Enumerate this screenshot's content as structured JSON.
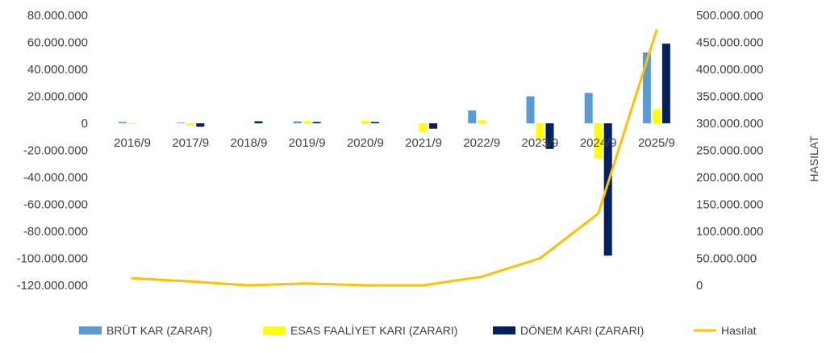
{
  "chart_data": {
    "type": "bar",
    "categories": [
      "2016/9",
      "2017/9",
      "2018/9",
      "2019/9",
      "2020/9",
      "2021/9",
      "2022/9",
      "2023/9",
      "2024/9",
      "2025/9"
    ],
    "series": [
      {
        "name": "BRÜT KAR (ZARAR)",
        "type": "bar",
        "axis": "left",
        "color": "#5B9BD5",
        "values": [
          1000000,
          500000,
          0,
          1500000,
          0,
          0,
          9500000,
          20000000,
          22500000,
          52500000
        ]
      },
      {
        "name": "ESAS FAALİYET KARI (ZARARI)",
        "type": "bar",
        "axis": "left",
        "color": "#FFFF00",
        "values": [
          -700000,
          -1500000,
          0,
          1500000,
          2000000,
          -6000000,
          2500000,
          -12000000,
          -26000000,
          10500000
        ]
      },
      {
        "name": "DÖNEM KARI (ZARARI)",
        "type": "bar",
        "axis": "left",
        "color": "#002060",
        "values": [
          0,
          -2500000,
          1500000,
          1000000,
          1000000,
          -4000000,
          0,
          -19000000,
          -98000000,
          59000000
        ]
      },
      {
        "name": "Hasılat",
        "type": "line",
        "axis": "right",
        "color": "#FFC000",
        "values": [
          13000000,
          7000000,
          0,
          3500000,
          0,
          0,
          16000000,
          50000000,
          133000000,
          472000000
        ]
      }
    ],
    "left_axis": {
      "min": -120000000,
      "max": 80000000,
      "step": 20000000,
      "tick_labels": [
        "-120.000.000",
        "-100.000.000",
        "-80.000.000",
        "-60.000.000",
        "-40.000.000",
        "-20.000.000",
        "0",
        "20.000.000",
        "40.000.000",
        "60.000.000",
        "80.000.000"
      ]
    },
    "right_axis": {
      "min": 0,
      "max": 500000000,
      "step": 50000000,
      "title": "HASILAT",
      "tick_labels": [
        "0",
        "50.000.000",
        "100.000.000",
        "150.000.000",
        "200.000.000",
        "250.000.000",
        "300.000.000",
        "350.000.000",
        "400.000.000",
        "450.000.000",
        "500.000.000"
      ]
    },
    "grid": false,
    "legend_position": "bottom"
  }
}
